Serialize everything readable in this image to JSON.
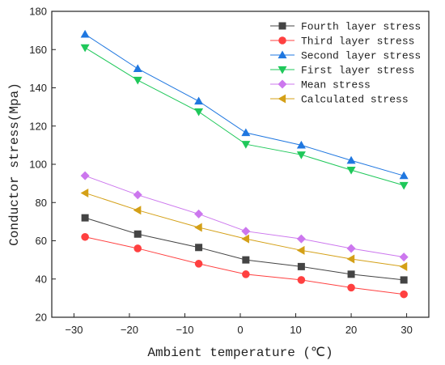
{
  "chart_data": {
    "type": "line",
    "title": "",
    "xlabel": "Ambient temperature (℃)",
    "ylabel": "Conductor stress(Mpa)",
    "xlim": [
      -34,
      34
    ],
    "ylim": [
      20,
      180
    ],
    "xticks": [
      -30,
      -20,
      -10,
      0,
      10,
      20,
      30
    ],
    "yticks": [
      20,
      40,
      60,
      80,
      100,
      120,
      140,
      160,
      180
    ],
    "grid": false,
    "legend_position": "top-right",
    "x": [
      -28,
      -18.5,
      -7.5,
      1,
      11,
      20,
      29.5
    ],
    "series": [
      {
        "name": "Fourth layer stress",
        "marker": "square",
        "color": "#444444",
        "values": [
          72,
          63.5,
          56.5,
          50,
          46.5,
          42.5,
          39.5
        ]
      },
      {
        "name": "Third layer stress",
        "marker": "circle",
        "color": "#ff4040",
        "values": [
          62,
          56,
          48,
          42.5,
          39.5,
          35.5,
          32
        ]
      },
      {
        "name": "Second layer stress",
        "marker": "triangle-up",
        "color": "#1f77e0",
        "values": [
          168,
          150,
          133,
          116.5,
          110,
          102,
          94
        ]
      },
      {
        "name": "First layer stress",
        "marker": "triangle-down",
        "color": "#1fc85a",
        "values": [
          161,
          144,
          127.5,
          110.5,
          105,
          97,
          89
        ]
      },
      {
        "name": "Mean stress",
        "marker": "diamond",
        "color": "#cc77ee",
        "values": [
          94,
          84,
          74,
          65,
          61,
          56,
          51.5
        ]
      },
      {
        "name": "Calculated stress",
        "marker": "triangle-left",
        "color": "#d4a017",
        "values": [
          85,
          76,
          67,
          61,
          55,
          50.5,
          46.5
        ]
      }
    ]
  }
}
